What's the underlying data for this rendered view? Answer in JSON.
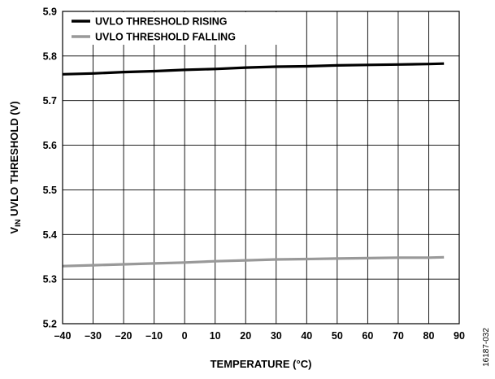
{
  "chart_data": {
    "type": "line",
    "xlabel": "TEMPERATURE (°C)",
    "ylabel": {
      "main": "V",
      "subscript": "IN",
      "rest": " UVLO THRESHOLD (V)"
    },
    "xlim": [
      -40,
      90
    ],
    "ylim": [
      5.2,
      5.9
    ],
    "x_ticks": [
      -40,
      -30,
      -20,
      -10,
      0,
      10,
      20,
      30,
      40,
      50,
      60,
      70,
      80,
      90
    ],
    "x_tick_labels": [
      "–40",
      "–30",
      "–20",
      "–10",
      "0",
      "10",
      "20",
      "30",
      "40",
      "50",
      "60",
      "70",
      "80",
      "90"
    ],
    "y_ticks": [
      5.2,
      5.3,
      5.4,
      5.5,
      5.6,
      5.7,
      5.8,
      5.9
    ],
    "y_tick_labels": [
      "5.2",
      "5.3",
      "5.4",
      "5.5",
      "5.6",
      "5.7",
      "5.8",
      "5.9"
    ],
    "grid": true,
    "legend_position": "top-left",
    "series": [
      {
        "name": "UVLO THRESHOLD RISING",
        "color": "#000000",
        "x": [
          -40,
          -30,
          -20,
          -10,
          0,
          10,
          20,
          30,
          40,
          50,
          60,
          70,
          80,
          85
        ],
        "y": [
          5.759,
          5.761,
          5.764,
          5.766,
          5.769,
          5.771,
          5.774,
          5.776,
          5.777,
          5.779,
          5.78,
          5.781,
          5.782,
          5.783
        ]
      },
      {
        "name": "UVLO THRESHOLD FALLING",
        "color": "#999999",
        "x": [
          -40,
          -30,
          -20,
          -10,
          0,
          10,
          20,
          30,
          40,
          50,
          60,
          70,
          80,
          85
        ],
        "y": [
          5.329,
          5.331,
          5.333,
          5.335,
          5.337,
          5.34,
          5.342,
          5.344,
          5.345,
          5.346,
          5.347,
          5.348,
          5.348,
          5.349
        ]
      }
    ]
  },
  "figure_id": "16187-032"
}
